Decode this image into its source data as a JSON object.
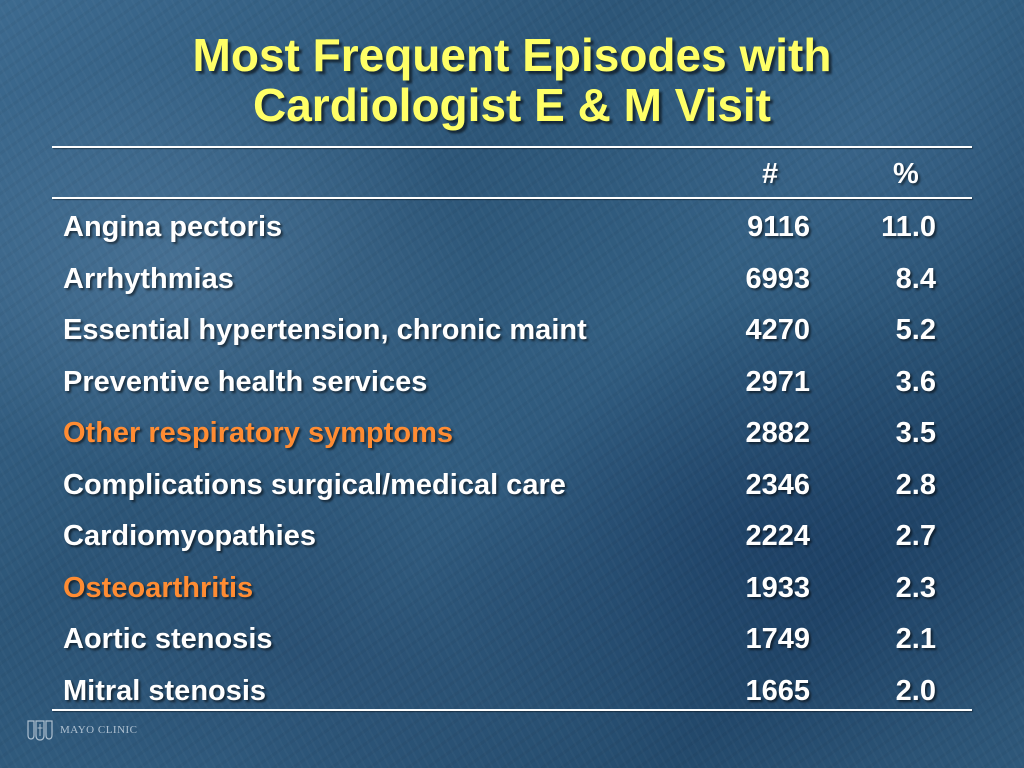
{
  "slide": {
    "title_line1": "Most Frequent Episodes with",
    "title_line2": "Cardiologist E & M Visit"
  },
  "table": {
    "headers": {
      "count": "#",
      "percent": "%"
    },
    "rows": [
      {
        "label": "Angina pectoris",
        "count": "9116",
        "percent": "11.0",
        "highlight": false
      },
      {
        "label": "Arrhythmias",
        "count": "6993",
        "percent": "8.4",
        "highlight": false
      },
      {
        "label": "Essential hypertension, chronic maint",
        "count": "4270",
        "percent": "5.2",
        "highlight": false
      },
      {
        "label": "Preventive health services",
        "count": "2971",
        "percent": "3.6",
        "highlight": false
      },
      {
        "label": "Other respiratory symptoms",
        "count": "2882",
        "percent": "3.5",
        "highlight": true
      },
      {
        "label": "Complications surgical/medical care",
        "count": "2346",
        "percent": "2.8",
        "highlight": false
      },
      {
        "label": "Cardiomyopathies",
        "count": "2224",
        "percent": "2.7",
        "highlight": false
      },
      {
        "label": "Osteoarthritis",
        "count": "1933",
        "percent": "2.3",
        "highlight": true
      },
      {
        "label": "Aortic stenosis",
        "count": "1749",
        "percent": "2.1",
        "highlight": false
      },
      {
        "label": "Mitral stenosis",
        "count": "1665",
        "percent": "2.0",
        "highlight": false
      }
    ]
  },
  "colors": {
    "title": "#ffff66",
    "text": "#ffffff",
    "highlight": "#ff8c33",
    "background": "#2d5678"
  },
  "footer": {
    "logo_text": "MAYO CLINIC",
    "logo_icon": "mayo-shield-icon"
  }
}
